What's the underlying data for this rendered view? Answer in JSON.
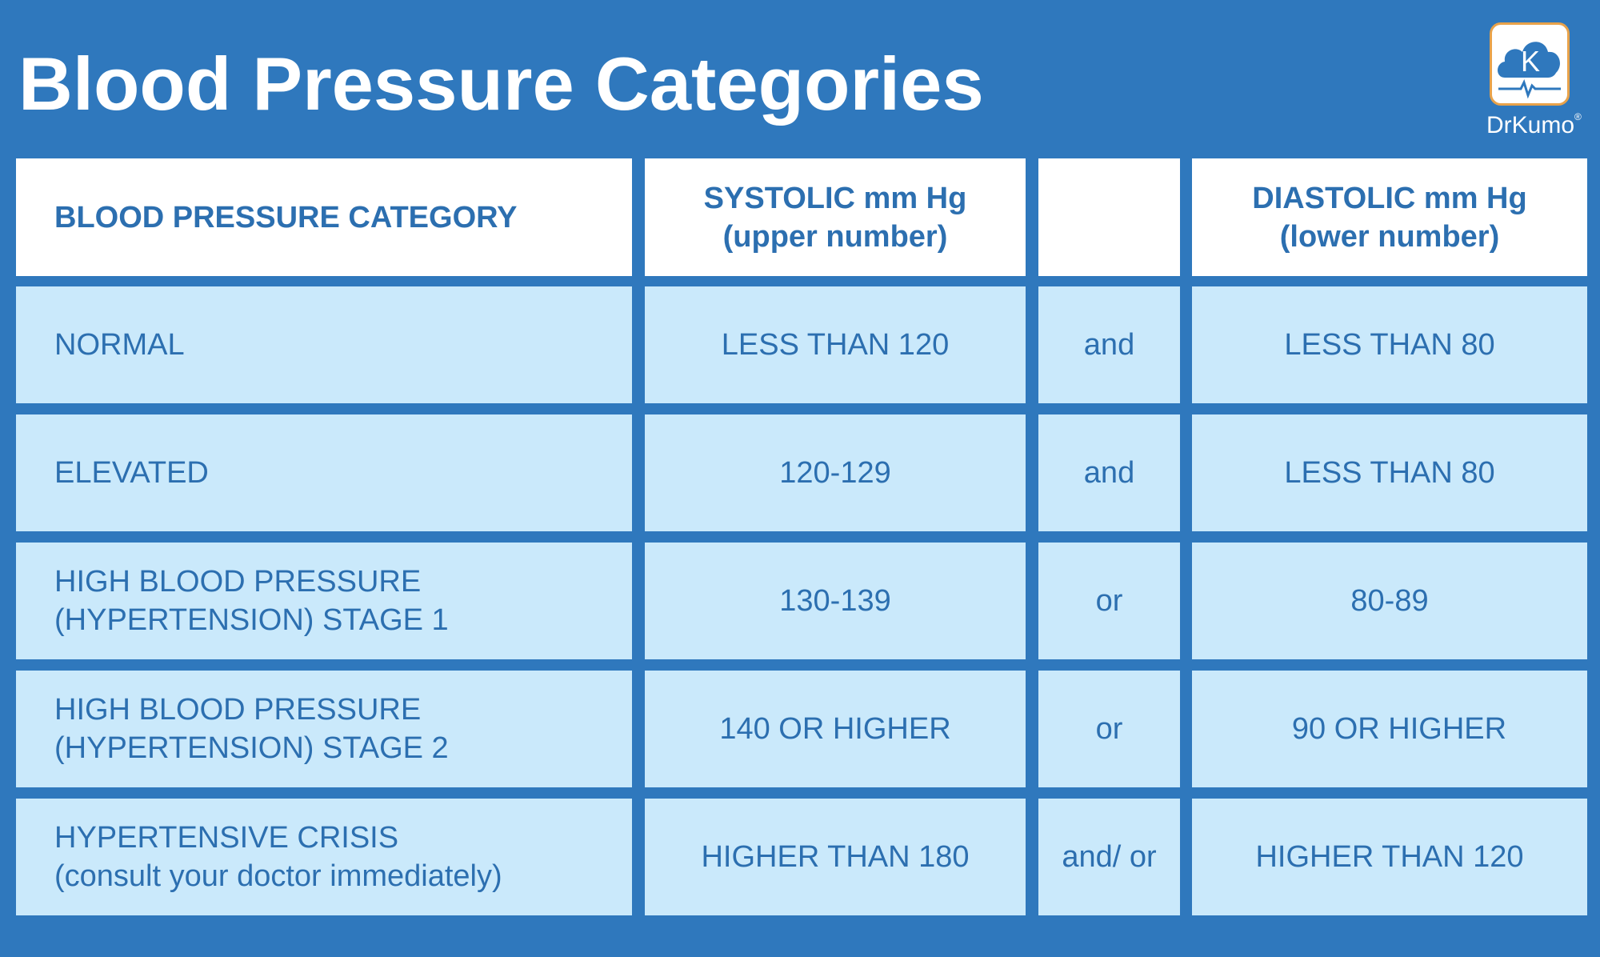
{
  "title": "Blood Pressure Categories",
  "logo": {
    "letter": "K",
    "name": "DrKumo",
    "registered": "®"
  },
  "colors": {
    "background": "#2f78bd",
    "header_cell": "#ffffff",
    "body_cell": "#cae9fb",
    "text": "#2c6fb0",
    "logo_border": "#e8a24a"
  },
  "table": {
    "headers": {
      "category": "BLOOD PRESSURE CATEGORY",
      "systolic_line1": "SYSTOLIC mm Hg",
      "systolic_line2": "(upper number)",
      "connector": "",
      "diastolic_line1": "DIASTOLIC mm Hg",
      "diastolic_line2": "(lower number)"
    },
    "rows": [
      {
        "category_line1": "NORMAL",
        "category_line2": "",
        "systolic": "LESS THAN 120",
        "connector": "and",
        "diastolic": "LESS THAN 80"
      },
      {
        "category_line1": "ELEVATED",
        "category_line2": "",
        "systolic": "120-129",
        "connector": "and",
        "diastolic": "LESS THAN 80"
      },
      {
        "category_line1": "HIGH BLOOD PRESSURE",
        "category_line2": "(HYPERTENSION) STAGE 1",
        "systolic": "130-139",
        "connector": "or",
        "diastolic": "80-89"
      },
      {
        "category_line1": "HIGH BLOOD PRESSURE",
        "category_line2": "(HYPERTENSION) STAGE 2",
        "systolic": "140 OR HIGHER",
        "connector": "or",
        "diastolic": "90 OR HIGHER"
      },
      {
        "category_line1": "HYPERTENSIVE CRISIS",
        "category_line2": "(consult your doctor immediately)",
        "systolic": "HIGHER THAN 180",
        "connector": "and/ or",
        "diastolic": "HIGHER THAN 120"
      }
    ]
  }
}
